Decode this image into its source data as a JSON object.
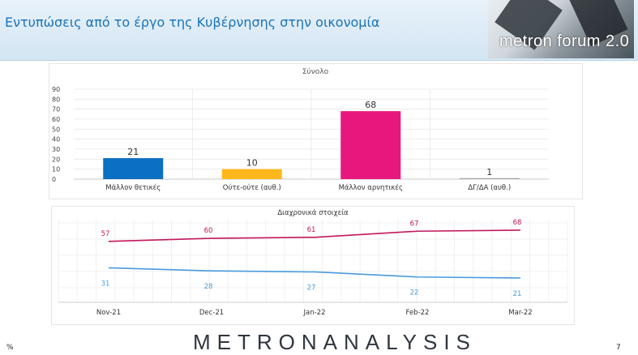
{
  "header": {
    "title": "Εντυπώσεις από το έργο της Κυβέρνησης στην οικονομία",
    "logo_text": "metron forum 2.0"
  },
  "footer": {
    "brand": "METRONANALYSIS",
    "unit": "%",
    "page_number": "7"
  },
  "chart_data": [
    {
      "type": "bar",
      "title": "Σύνολο",
      "categories": [
        "Μάλλον θετικές",
        "Ούτε-ούτε (αυθ.)",
        "Μάλλον αρνητικές",
        "ΔΓ/ΔΑ (αυθ.)"
      ],
      "values": [
        21,
        10,
        68,
        1
      ],
      "colors": [
        "#0b6fc2",
        "#ffb81c",
        "#e8177d",
        "#a6a6a6"
      ],
      "yticks": [
        0,
        10,
        20,
        30,
        40,
        50,
        60,
        70,
        80,
        90
      ],
      "ylim": [
        0,
        90
      ],
      "grid": true,
      "xlabel": "",
      "ylabel": ""
    },
    {
      "type": "line",
      "title": "Διαχρονικά στοιχεία",
      "x": [
        "Nov-21",
        "Dec-21",
        "Jan-22",
        "Feb-22",
        "Mar-22"
      ],
      "series": [
        {
          "values": [
            57,
            60,
            61,
            67,
            68
          ],
          "color": "#c2185b"
        },
        {
          "values": [
            31,
            28,
            27,
            22,
            21
          ],
          "color": "#4a9bdc"
        }
      ],
      "grid": true,
      "xlabel": "",
      "ylabel": ""
    }
  ]
}
